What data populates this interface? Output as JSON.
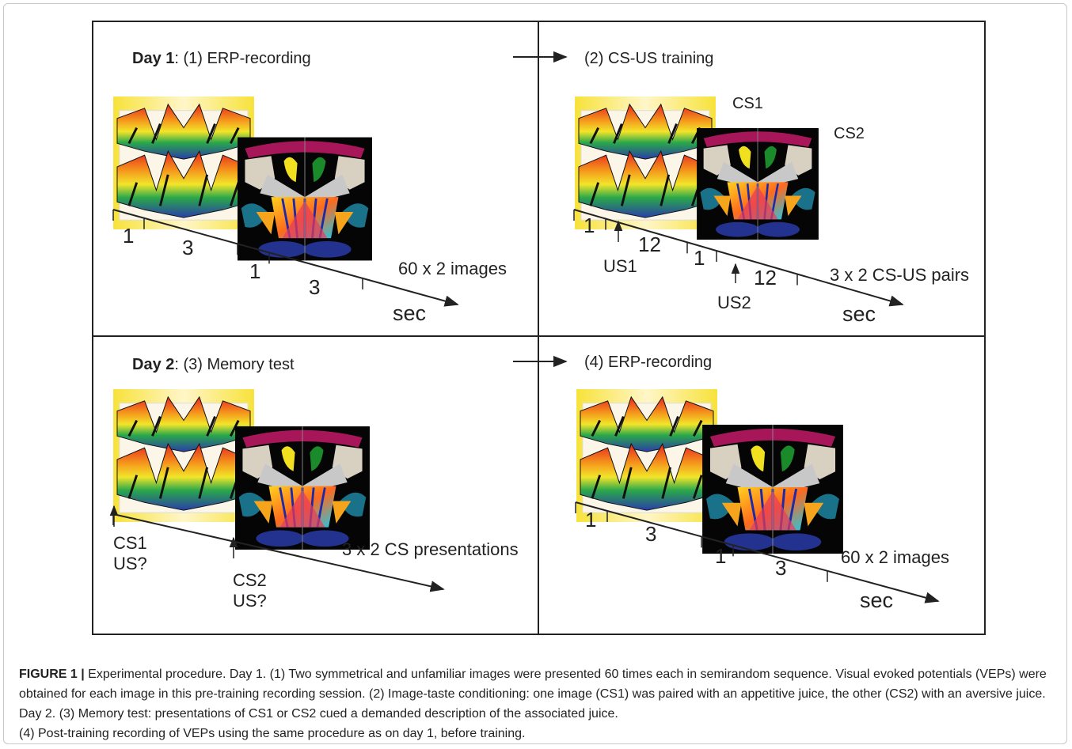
{
  "panels": [
    {
      "day": "Day 1",
      "title": ": (1) ERP-recording",
      "times": [
        "1",
        "3",
        "1",
        "3"
      ],
      "note": "60 x 2 images",
      "unit": "sec"
    },
    {
      "title": "(2) CS-US training",
      "image_labels": [
        "CS1",
        "CS2"
      ],
      "times": [
        "1",
        "12",
        "1",
        "12"
      ],
      "events": [
        "US1",
        "US2"
      ],
      "note": "3 x 2 CS-US pairs",
      "unit": "sec"
    },
    {
      "day": "Day 2",
      "title": ": (3) Memory test",
      "events": [
        [
          "CS1",
          "US?"
        ],
        [
          "CS2",
          "US?"
        ]
      ],
      "note": "3 x 2 CS presentations"
    },
    {
      "title": "(4) ERP-recording",
      "times": [
        "1",
        "3",
        "1",
        "3"
      ],
      "note": "60 x 2 images",
      "unit": "sec"
    }
  ],
  "caption": {
    "label": "FIGURE 1 |",
    "paragraphs": [
      "Experimental procedure. Day 1. (1) Two symmetrical and unfamiliar images were presented 60 times each in semirandom sequence. Visual evoked potentials (VEPs) were obtained for each image in this pre-training recording session. (2) Image-taste conditioning: one image (CS1) was paired with an appetitive juice, the other (CS2) with an aversive juice. Day 2. (3) Memory test: presentations of CS1 or CS2 cued a demanded description of the associated juice.",
      "(4) Post-training recording of VEPs using the same procedure as on day 1, before training."
    ]
  }
}
